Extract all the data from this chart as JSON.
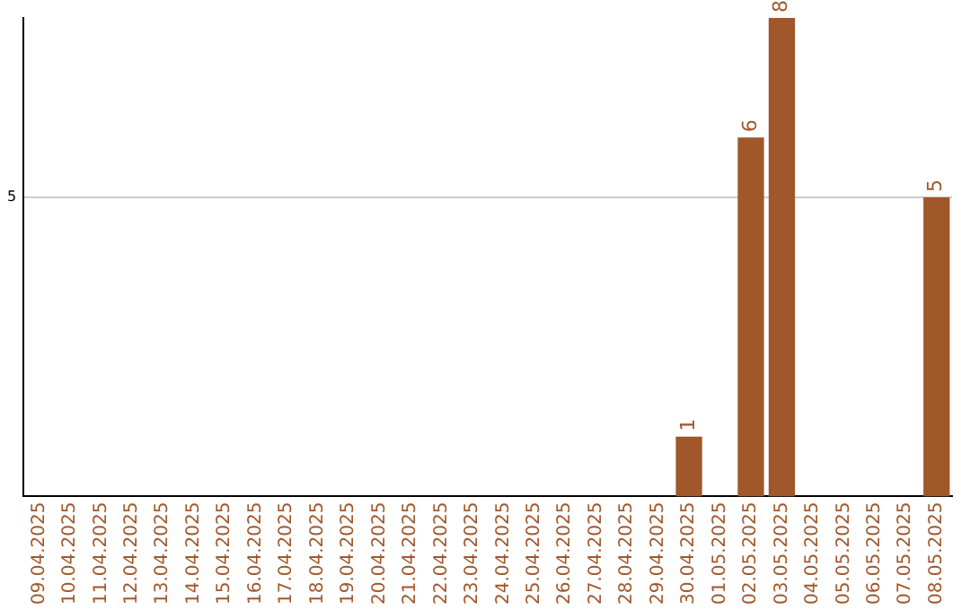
{
  "chart_data": {
    "type": "bar",
    "categories": [
      "09.04.2025",
      "10.04.2025",
      "11.04.2025",
      "12.04.2025",
      "13.04.2025",
      "14.04.2025",
      "15.04.2025",
      "16.04.2025",
      "17.04.2025",
      "18.04.2025",
      "19.04.2025",
      "20.04.2025",
      "21.04.2025",
      "22.04.2025",
      "23.04.2025",
      "24.04.2025",
      "25.04.2025",
      "26.04.2025",
      "27.04.2025",
      "28.04.2025",
      "29.04.2025",
      "30.04.2025",
      "01.05.2025",
      "02.05.2025",
      "03.05.2025",
      "04.05.2025",
      "05.05.2025",
      "06.05.2025",
      "07.05.2025",
      "08.05.2025"
    ],
    "values": [
      null,
      null,
      null,
      null,
      null,
      null,
      null,
      null,
      null,
      null,
      null,
      null,
      null,
      null,
      null,
      null,
      null,
      null,
      null,
      null,
      null,
      1,
      null,
      6,
      8,
      null,
      null,
      null,
      null,
      5
    ],
    "color": "#a0572a",
    "ylim": [
      0,
      8
    ],
    "yticks": [
      5
    ],
    "grid": "y",
    "legend": false,
    "data_labels": true
  }
}
